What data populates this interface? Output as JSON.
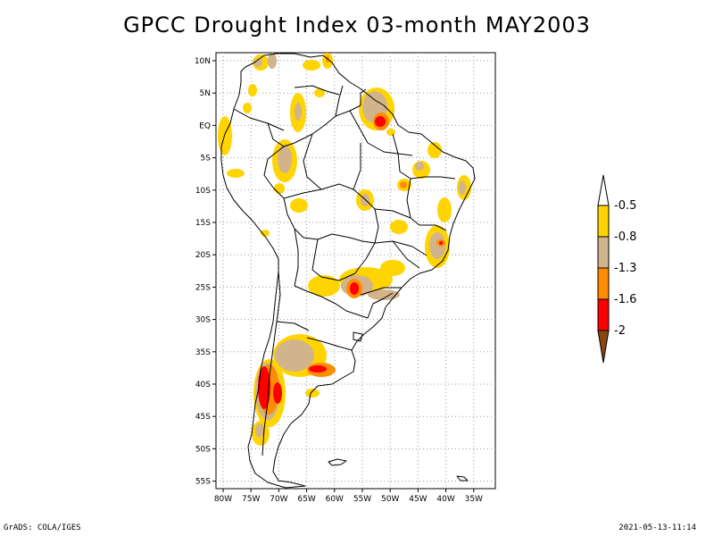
{
  "title": "GPCC Drought Index 03-month MAY2003",
  "footer_left": "GrADS: COLA/IGES",
  "footer_right": "2021-05-13-11:14",
  "map": {
    "lat_labels": [
      "10N",
      "5N",
      "EQ",
      "5S",
      "10S",
      "15S",
      "20S",
      "25S",
      "30S",
      "35S",
      "40S",
      "45S",
      "50S",
      "55S"
    ],
    "lon_labels": [
      "80W",
      "75W",
      "70W",
      "65W",
      "60W",
      "55W",
      "50W",
      "45W",
      "40W",
      "35W"
    ]
  },
  "legend": {
    "labels": [
      "-0.5",
      "-0.8",
      "-1.3",
      "-1.6",
      "-2"
    ],
    "colors": {
      "top_arrow": "#ffffff",
      "mild": "#ffd400",
      "moderate": "#d2b48c",
      "severe": "#ff8c00",
      "extreme": "#ff0000",
      "exceptional": "#8b4513"
    }
  },
  "colors": {
    "coastline": "#000000",
    "grid": "#999999",
    "mild": "#ffd400",
    "moderate": "#d2b48c",
    "severe": "#ff8c00",
    "extreme": "#ff0000"
  }
}
